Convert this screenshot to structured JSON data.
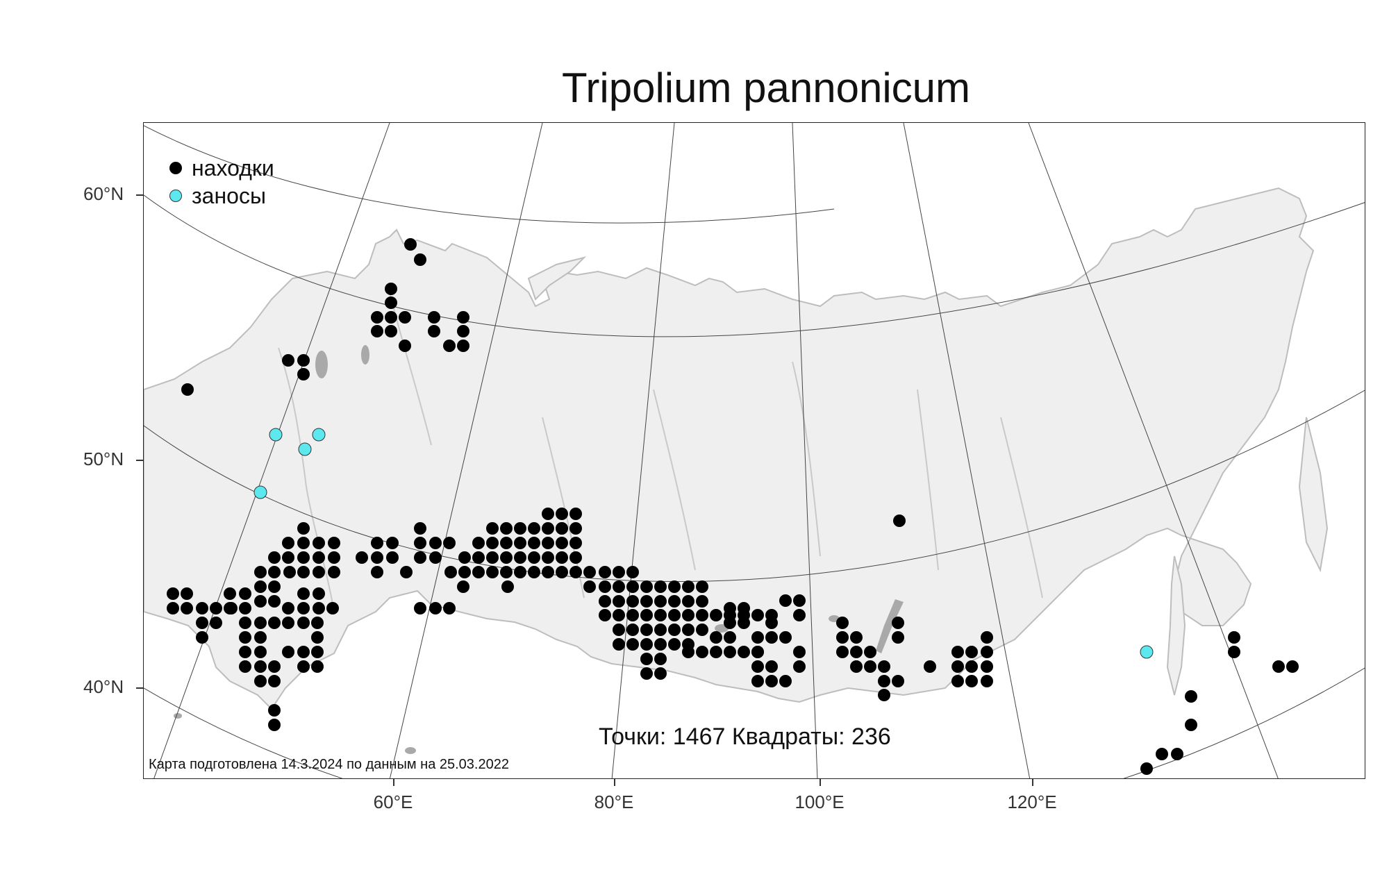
{
  "title": "Tripolium pannonicum",
  "colors": {
    "land": "#efefef",
    "land_outline": "#bdbdbd",
    "rivers": "#c9c9c9",
    "lakes": "#a9a9a9",
    "graticule": "#444444",
    "finds": "#000000",
    "introductions": "#5ce8ee"
  },
  "legend": [
    {
      "label": "находки",
      "color": "#000000",
      "icon": "black-dot"
    },
    {
      "label": "заносы",
      "color": "#5ce8ee",
      "icon": "cyan-dot"
    }
  ],
  "lat_labels": [
    "60°N",
    "50°N",
    "40°N"
  ],
  "lon_labels": [
    "60°E",
    "80°E",
    "100°E",
    "120°E"
  ],
  "counts_text": "Точки: 1467 Квадраты: 236",
  "note": "Карта подготовлена 14.3.2024 по данным на 25.03.2022"
}
